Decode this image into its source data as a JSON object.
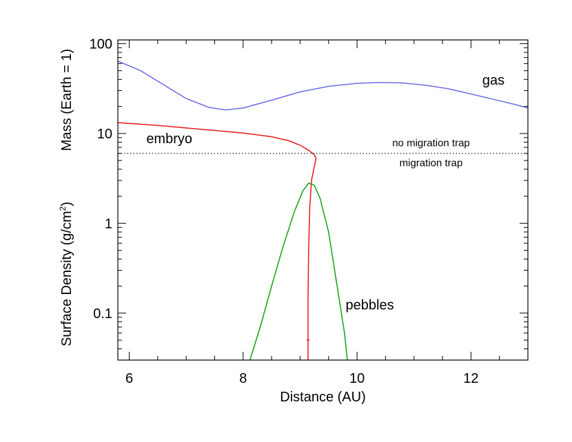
{
  "chart_data": {
    "type": "line",
    "xlabel": "Distance (AU)",
    "ylabel_top": "Mass (Earth = 1)",
    "ylabel_bottom": "Surface Density (g/cm",
    "ylabel_bottom_sup": "2",
    "ylabel_bottom_close": ")",
    "xlim": [
      5.8,
      13.0
    ],
    "ylim": [
      0.03,
      110
    ],
    "yscale": "log",
    "grid": false,
    "x_ticks": [
      6,
      8,
      10,
      12
    ],
    "x_tick_labels": [
      "6",
      "8",
      "10",
      "12"
    ],
    "x_minor_ticks": [
      6.5,
      7,
      7.5,
      8.5,
      9,
      9.5,
      10.5,
      11,
      11.5,
      12.5
    ],
    "y_ticks": [
      0.1,
      1,
      10,
      100
    ],
    "y_tick_labels": [
      "0.1",
      "1",
      "10",
      "100"
    ],
    "y_minor_ticks": [
      0.04,
      0.05,
      0.06,
      0.07,
      0.08,
      0.09,
      0.2,
      0.3,
      0.4,
      0.5,
      0.6,
      0.7,
      0.8,
      0.9,
      2,
      3,
      4,
      5,
      6,
      7,
      8,
      9,
      20,
      30,
      40,
      50,
      60,
      70,
      80,
      90
    ],
    "series": [
      {
        "name": "gas",
        "color": "#6b6be8",
        "points": [
          [
            5.8,
            64
          ],
          [
            6.2,
            50
          ],
          [
            6.6,
            35
          ],
          [
            7.0,
            24.5
          ],
          [
            7.4,
            19.5
          ],
          [
            7.7,
            18.3
          ],
          [
            8.0,
            19.2
          ],
          [
            8.5,
            23.5
          ],
          [
            9.0,
            29
          ],
          [
            9.5,
            33.5
          ],
          [
            10.0,
            36.2
          ],
          [
            10.4,
            37
          ],
          [
            10.8,
            36.5
          ],
          [
            11.2,
            34.5
          ],
          [
            11.6,
            31.5
          ],
          [
            12.0,
            27.5
          ],
          [
            12.4,
            24
          ],
          [
            12.8,
            20.8
          ],
          [
            13.0,
            19.2
          ]
        ]
      },
      {
        "name": "embryo",
        "color": "#e81818",
        "points": [
          [
            5.8,
            13.2
          ],
          [
            6.5,
            12.3
          ],
          [
            7.0,
            11.5
          ],
          [
            7.5,
            10.8
          ],
          [
            8.0,
            10.1
          ],
          [
            8.5,
            9.2
          ],
          [
            8.8,
            8.3
          ],
          [
            9.0,
            7.4
          ],
          [
            9.15,
            6.5
          ],
          [
            9.25,
            5.8
          ],
          [
            9.28,
            5.3
          ],
          [
            9.25,
            4.3
          ],
          [
            9.2,
            3.0
          ],
          [
            9.17,
            1.5
          ],
          [
            9.15,
            0.5
          ],
          [
            9.14,
            0.15
          ],
          [
            9.14,
            0.03
          ]
        ]
      },
      {
        "name": "pebbles",
        "color": "#12a012",
        "points": [
          [
            8.12,
            0.03
          ],
          [
            8.3,
            0.07
          ],
          [
            8.5,
            0.2
          ],
          [
            8.7,
            0.55
          ],
          [
            8.9,
            1.35
          ],
          [
            9.05,
            2.3
          ],
          [
            9.15,
            2.8
          ],
          [
            9.25,
            2.65
          ],
          [
            9.35,
            1.9
          ],
          [
            9.5,
            0.8
          ],
          [
            9.65,
            0.2
          ],
          [
            9.78,
            0.06
          ],
          [
            9.83,
            0.03
          ]
        ]
      }
    ],
    "marker": {
      "x": 9.14,
      "y": 0.05,
      "color": "#e81818"
    },
    "threshold": {
      "y": 6.0,
      "style": "dotted"
    },
    "annotations": [
      {
        "text": "gas",
        "x": 12.2,
        "y": 35
      },
      {
        "text": "embryo",
        "x": 6.3,
        "y": 7.8
      },
      {
        "text": "pebbles",
        "x": 9.8,
        "y": 0.11
      },
      {
        "text": "no migration trap",
        "x": 11.3,
        "y": 7.2
      },
      {
        "text": "migration trap",
        "x": 11.3,
        "y": 4.3
      }
    ]
  }
}
